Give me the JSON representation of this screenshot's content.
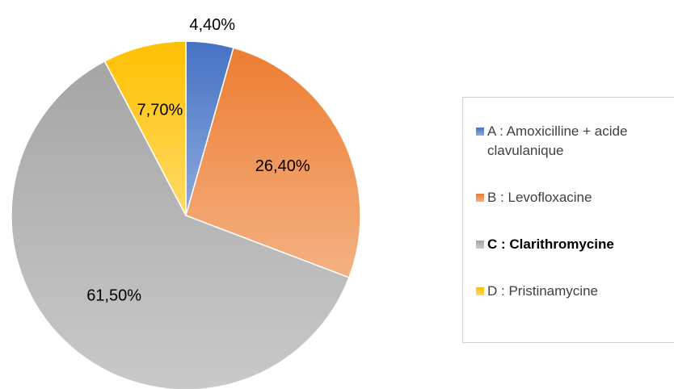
{
  "chart_data": {
    "type": "pie",
    "categories": [
      "A : Amoxicilline + acide clavulanique",
      "B : Levofloxacine",
      "C : Clarithromycine",
      "D : Pristinamycine"
    ],
    "values": [
      4.4,
      26.4,
      61.5,
      7.7
    ],
    "value_labels": [
      "4,40%",
      "26,40%",
      "61,50%",
      "7,70%"
    ],
    "colors": [
      "#4472c4",
      "#ed7d31",
      "#a5a5a5",
      "#ffc000"
    ],
    "legend": "right",
    "legend_bold": [
      false,
      false,
      true,
      false
    ]
  }
}
